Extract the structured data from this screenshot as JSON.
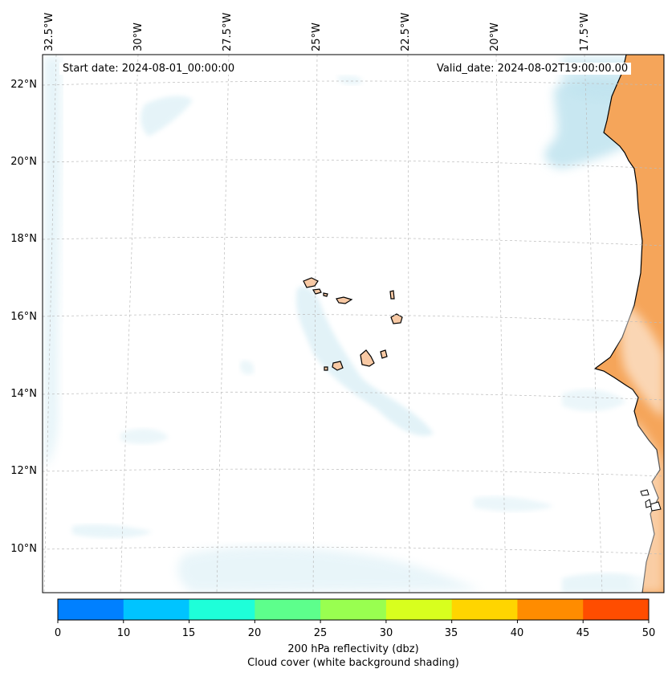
{
  "map": {
    "start_label": "Start date: 2024-08-01_00:00:00",
    "valid_label": "Valid_date: 2024-08-02T19:00:00.00",
    "longitude_labels": [
      "32.5°W",
      "30°W",
      "27.5°W",
      "25°W",
      "22.5°W",
      "20°W",
      "17.5°W"
    ],
    "latitude_labels": [
      "22°N",
      "20°N",
      "18°N",
      "16°N",
      "14°N",
      "12°N",
      "10°N"
    ],
    "region": "Cabo Verde and West African coast",
    "colors": {
      "land": "#f5a55a",
      "cloud": "#bfe3ef",
      "island_land": "#f8c9a4",
      "coast": "#000000",
      "grid": "#bbbbbb"
    }
  },
  "colorbar": {
    "ticks": [
      "0",
      "10",
      "15",
      "20",
      "25",
      "30",
      "35",
      "40",
      "45",
      "50"
    ],
    "colors": [
      "#0080ff",
      "#00c4ff",
      "#1effd9",
      "#5dff8c",
      "#99ff50",
      "#d8ff1e",
      "#ffd500",
      "#ff8c00",
      "#ff4d00"
    ],
    "label_line1": "200 hPa reflectivity (dbz)",
    "label_line2": "Cloud cover (white background shading)"
  }
}
